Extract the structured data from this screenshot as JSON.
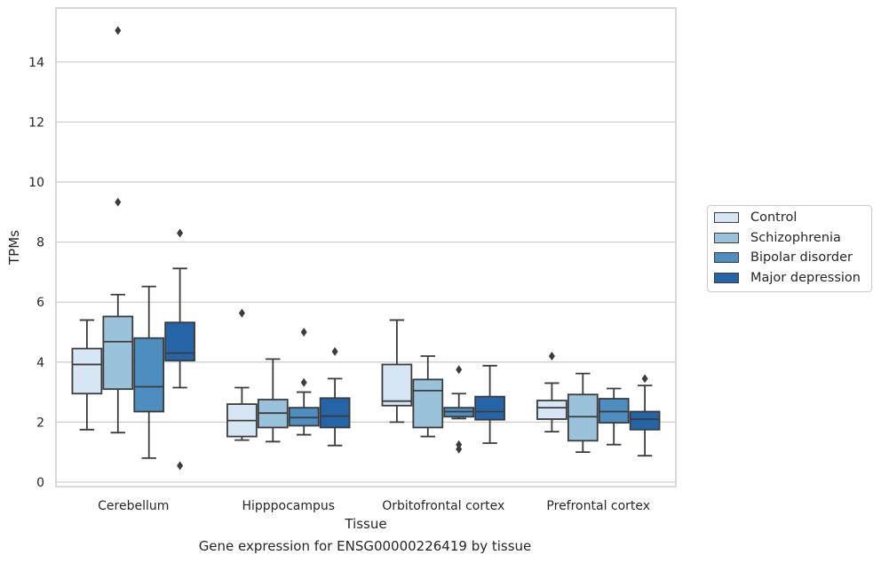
{
  "caption": "Gene expression for ENSG00000226419 by tissue",
  "colors": {
    "Control": "#d7e6f4",
    "Schizophrenia": "#9ac3db",
    "Bipolar disorder": "#4d8dc0",
    "Major depression": "#2565a7",
    "box_edge": "#3c3c3c",
    "grid": "#cccccc",
    "spine": "#cccccc"
  },
  "chart_data": {
    "type": "box",
    "xlabel": "Tissue",
    "ylabel": "TPMs",
    "ylim": [
      -0.15,
      15.8
    ],
    "yticks": [
      0,
      2,
      4,
      6,
      8,
      10,
      12,
      14
    ],
    "grid": "horizontal",
    "legend_position": "outside-right",
    "categories": [
      "Cerebellum",
      "Hipppocampus",
      "Orbitofrontal cortex",
      "Prefrontal cortex"
    ],
    "series": [
      {
        "name": "Control",
        "boxes": [
          {
            "whisker_low": 1.75,
            "q1": 2.95,
            "median": 3.92,
            "q3": 4.45,
            "whisker_high": 5.4,
            "outliers": []
          },
          {
            "whisker_low": 1.4,
            "q1": 1.52,
            "median": 2.05,
            "q3": 2.6,
            "whisker_high": 3.15,
            "outliers": [
              5.63
            ]
          },
          {
            "whisker_low": 2.0,
            "q1": 2.55,
            "median": 2.7,
            "q3": 3.92,
            "whisker_high": 5.4,
            "outliers": []
          },
          {
            "whisker_low": 1.68,
            "q1": 2.1,
            "median": 2.48,
            "q3": 2.72,
            "whisker_high": 3.3,
            "outliers": [
              4.2
            ]
          }
        ]
      },
      {
        "name": "Schizophrenia",
        "boxes": [
          {
            "whisker_low": 1.65,
            "q1": 3.1,
            "median": 4.68,
            "q3": 5.52,
            "whisker_high": 6.25,
            "outliers": [
              9.33,
              15.05
            ]
          },
          {
            "whisker_low": 1.35,
            "q1": 1.82,
            "median": 2.3,
            "q3": 2.75,
            "whisker_high": 4.1,
            "outliers": []
          },
          {
            "whisker_low": 1.52,
            "q1": 1.82,
            "median": 3.05,
            "q3": 3.42,
            "whisker_high": 4.2,
            "outliers": []
          },
          {
            "whisker_low": 1.0,
            "q1": 1.38,
            "median": 2.18,
            "q3": 2.92,
            "whisker_high": 3.62,
            "outliers": []
          }
        ]
      },
      {
        "name": "Bipolar disorder",
        "boxes": [
          {
            "whisker_low": 0.8,
            "q1": 2.35,
            "median": 3.18,
            "q3": 4.8,
            "whisker_high": 6.52,
            "outliers": []
          },
          {
            "whisker_low": 1.58,
            "q1": 1.88,
            "median": 2.15,
            "q3": 2.48,
            "whisker_high": 3.0,
            "outliers": [
              3.32,
              5.0
            ]
          },
          {
            "whisker_low": 2.12,
            "q1": 2.18,
            "median": 2.35,
            "q3": 2.48,
            "whisker_high": 2.95,
            "outliers": [
              3.75,
              1.1,
              1.25
            ]
          },
          {
            "whisker_low": 1.25,
            "q1": 1.98,
            "median": 2.35,
            "q3": 2.78,
            "whisker_high": 3.12,
            "outliers": []
          }
        ]
      },
      {
        "name": "Major depression",
        "boxes": [
          {
            "whisker_low": 3.15,
            "q1": 4.05,
            "median": 4.3,
            "q3": 5.32,
            "whisker_high": 7.12,
            "outliers": [
              8.3,
              0.55
            ]
          },
          {
            "whisker_low": 1.22,
            "q1": 1.82,
            "median": 2.2,
            "q3": 2.8,
            "whisker_high": 3.45,
            "outliers": [
              4.35
            ]
          },
          {
            "whisker_low": 1.3,
            "q1": 2.08,
            "median": 2.35,
            "q3": 2.85,
            "whisker_high": 3.88,
            "outliers": []
          },
          {
            "whisker_low": 0.88,
            "q1": 1.75,
            "median": 2.1,
            "q3": 2.35,
            "whisker_high": 3.22,
            "outliers": [
              3.45
            ]
          }
        ]
      }
    ]
  }
}
